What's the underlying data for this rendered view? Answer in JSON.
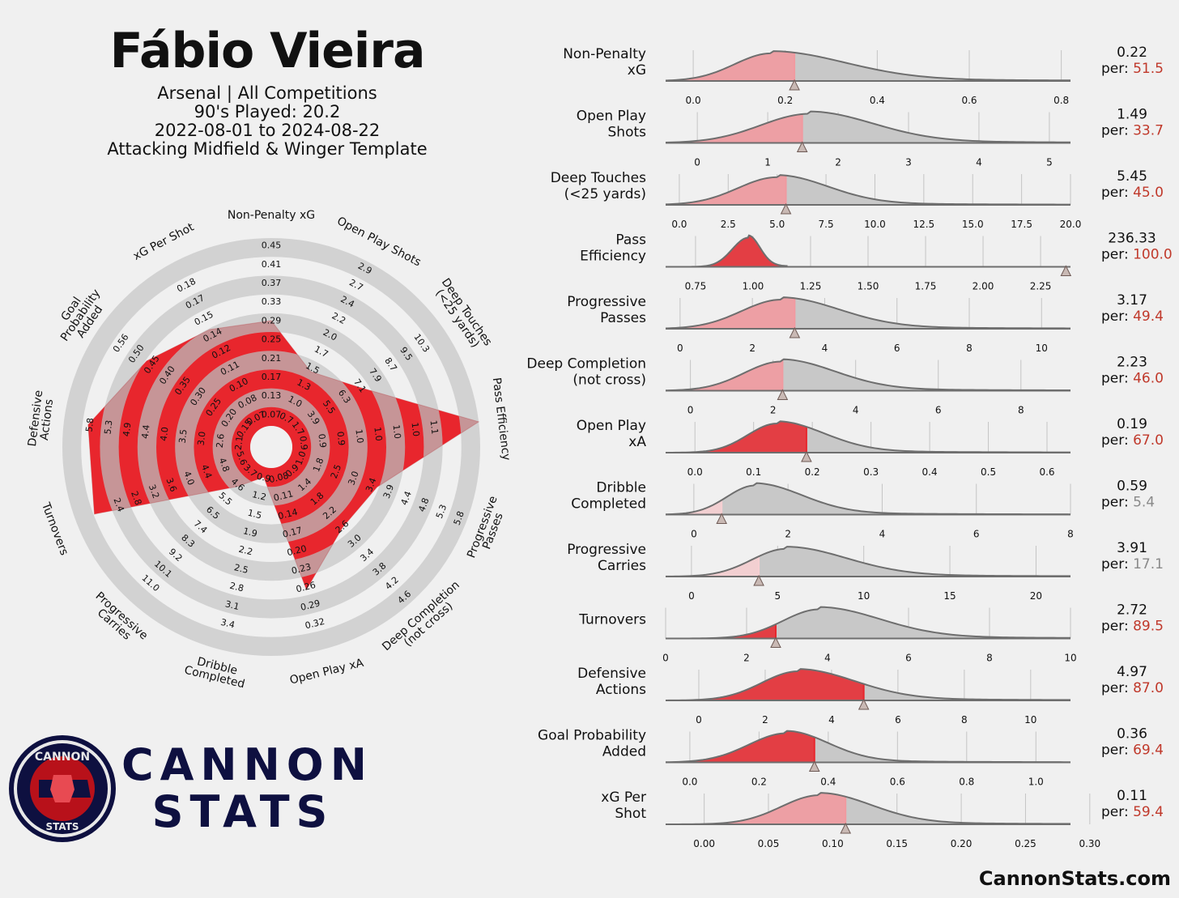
{
  "header": {
    "player": "Fábio Vieira",
    "line1": "Arsenal | All Competitions",
    "line2": "90's Played: 20.2",
    "line3": "2022-08-01 to 2024-08-22",
    "line4": "Attacking Midfield & Winger Template"
  },
  "brand": {
    "line1": "CANNON",
    "line2": "STATS",
    "badge_top": "CANNON",
    "badge_bottom": "STATS",
    "site": "CannonStats.com"
  },
  "colors": {
    "red": "#e8262d",
    "light_red": "#f19aa0",
    "pale_red": "#f6cfd2",
    "gray": "#c8c8c8",
    "ring": "#d2d2d2",
    "navy": "#0e1040",
    "pct_high": "#c0392b",
    "pct_low": "#8a8a8a"
  },
  "chart_data": [
    {
      "type": "radar",
      "axes": [
        {
          "label": [
            "Non-Penalty xG"
          ],
          "ticks": [
            "0.07",
            "0.13",
            "0.17",
            "0.21",
            "0.25",
            "0.29",
            "0.33",
            "0.37",
            "0.41",
            "0.45"
          ],
          "value_fraction": 0.56
        },
        {
          "label": [
            "Open Play Shots"
          ],
          "ticks": [
            "0.7",
            "1.0",
            "1.3",
            "1.5",
            "1.7",
            "2.0",
            "2.2",
            "2.4",
            "2.7",
            "2.9"
          ],
          "value_fraction": 0.34
        },
        {
          "label": [
            "Deep Touches",
            "(<25 yards)"
          ],
          "ticks": [
            "1.7",
            "3.9",
            "5.5",
            "6.3",
            "7.1",
            "7.9",
            "8.7",
            "9.5",
            "10.3",
            ""
          ],
          "value_fraction": 0.45
        },
        {
          "label": [
            "Pass Efficiency"
          ],
          "ticks": [
            "0.9",
            "0.9",
            "0.9",
            "1.0",
            "1.0",
            "1.0",
            "1.0",
            "1.1",
            "",
            ""
          ],
          "value_fraction": 1.0
        },
        {
          "label": [
            "Progressive",
            "Passes"
          ],
          "ticks": [
            "1.0",
            "1.8",
            "2.5",
            "3.0",
            "3.4",
            "3.9",
            "4.4",
            "4.8",
            "5.3",
            "5.8"
          ],
          "value_fraction": 0.49
        },
        {
          "label": [
            "Deep Completion",
            "(not cross)"
          ],
          "ticks": [
            "0.9",
            "1.4",
            "1.8",
            "2.2",
            "2.6",
            "3.0",
            "3.4",
            "3.8",
            "4.2",
            "4.6"
          ],
          "value_fraction": 0.46
        },
        {
          "label": [
            "Open Play xA"
          ],
          "ticks": [
            "0.08",
            "0.11",
            "0.14",
            "0.17",
            "0.20",
            "0.23",
            "0.26",
            "0.29",
            "0.32",
            ""
          ],
          "value_fraction": 0.67
        },
        {
          "label": [
            "Dribble",
            "Completed"
          ],
          "ticks": [
            "0.9",
            "1.2",
            "1.5",
            "1.9",
            "2.2",
            "2.5",
            "2.8",
            "3.1",
            "3.4",
            ""
          ],
          "value_fraction": 0.054
        },
        {
          "label": [
            "Progressive",
            "Carries"
          ],
          "ticks": [
            "3.7",
            "4.6",
            "5.5",
            "6.5",
            "7.4",
            "8.3",
            "9.2",
            "10.1",
            "11.0",
            ""
          ],
          "value_fraction": 0.171
        },
        {
          "label": [
            "Turnovers"
          ],
          "ticks": [
            "5.6",
            "4.8",
            "4.4",
            "4.0",
            "3.6",
            "3.2",
            "2.8",
            "2.4",
            "",
            ""
          ],
          "value_fraction": 0.895
        },
        {
          "label": [
            "Defensive",
            "Actions"
          ],
          "ticks": [
            "2.1",
            "2.6",
            "3.0",
            "3.5",
            "4.0",
            "4.4",
            "4.9",
            "5.3",
            "5.8",
            ""
          ],
          "value_fraction": 0.87
        },
        {
          "label": [
            "Goal",
            "Probability",
            "Added"
          ],
          "ticks": [
            "0.15",
            "0.20",
            "0.25",
            "0.30",
            "0.35",
            "0.40",
            "0.45",
            "0.50",
            "0.56",
            ""
          ],
          "value_fraction": 0.694
        },
        {
          "label": [
            "xG Per Shot"
          ],
          "ticks": [
            "0.07",
            "0.08",
            "0.10",
            "0.11",
            "0.12",
            "0.14",
            "0.15",
            "0.17",
            "0.18",
            ""
          ],
          "value_fraction": 0.594
        }
      ]
    },
    {
      "type": "area",
      "metrics": [
        {
          "label": [
            "Non-Penalty",
            "xG"
          ],
          "value": "0.22",
          "pct": "51.5",
          "player_value": 0.22,
          "range": [
            -0.06,
            0.82
          ],
          "ticks": [
            0.0,
            0.2,
            0.4,
            0.6,
            0.8
          ],
          "tick_labels": [
            "0.0",
            "0.2",
            "0.4",
            "0.6",
            "0.8"
          ],
          "peak": 0.17,
          "spread_left": 0.08,
          "spread_right": 0.16,
          "height": 0.95
        },
        {
          "label": [
            "Open Play",
            "Shots"
          ],
          "value": "1.49",
          "pct": "33.7",
          "player_value": 1.49,
          "range": [
            -0.45,
            5.3
          ],
          "ticks": [
            0,
            1,
            2,
            3,
            4,
            5
          ],
          "tick_labels": [
            "0",
            "1",
            "2",
            "3",
            "4",
            "5"
          ],
          "peak": 1.6,
          "spread_left": 0.7,
          "spread_right": 0.9,
          "height": 1.0
        },
        {
          "label": [
            "Deep Touches",
            "(<25 yards)"
          ],
          "value": "5.45",
          "pct": "45.0",
          "player_value": 5.45,
          "range": [
            -0.7,
            20.0
          ],
          "ticks": [
            0,
            2.5,
            5,
            7.5,
            10,
            12.5,
            15,
            17.5,
            20
          ],
          "tick_labels": [
            "0.0",
            "2.5",
            "5.0",
            "7.5",
            "10.0",
            "12.5",
            "15.0",
            "17.5",
            "20.0"
          ],
          "peak": 5.0,
          "spread_left": 2.0,
          "spread_right": 2.6,
          "height": 0.95
        },
        {
          "label": [
            "Pass",
            "Efficiency"
          ],
          "value": "236.33",
          "pct": "100.0",
          "player_value": 2.36,
          "range": [
            0.62,
            2.38
          ],
          "ticks": [
            0.75,
            1.0,
            1.25,
            1.5,
            1.75,
            2.0,
            2.25
          ],
          "tick_labels": [
            "0.75",
            "1.00",
            "1.25",
            "1.50",
            "1.75",
            "2.00",
            "2.25"
          ],
          "peak": 0.98,
          "spread_left": 0.07,
          "spread_right": 0.05,
          "height": 1.0
        },
        {
          "label": [
            "Progressive",
            "Passes"
          ],
          "value": "3.17",
          "pct": "49.4",
          "player_value": 3.17,
          "range": [
            -0.4,
            10.8
          ],
          "ticks": [
            0,
            2,
            4,
            6,
            8,
            10
          ],
          "tick_labels": [
            "0",
            "2",
            "4",
            "6",
            "8",
            "10"
          ],
          "peak": 2.8,
          "spread_left": 1.1,
          "spread_right": 1.6,
          "height": 1.0
        },
        {
          "label": [
            "Deep Completion",
            "(not cross)"
          ],
          "value": "2.23",
          "pct": "46.0",
          "player_value": 2.23,
          "range": [
            -0.6,
            9.2
          ],
          "ticks": [
            0,
            2,
            4,
            6,
            8
          ],
          "tick_labels": [
            "0",
            "2",
            "4",
            "6",
            "8"
          ],
          "peak": 2.2,
          "spread_left": 0.9,
          "spread_right": 1.3,
          "height": 1.0
        },
        {
          "label": [
            "Open Play",
            "xA"
          ],
          "value": "0.19",
          "pct": "67.0",
          "player_value": 0.19,
          "range": [
            -0.05,
            0.64
          ],
          "ticks": [
            0.0,
            0.1,
            0.2,
            0.3,
            0.4,
            0.5,
            0.6
          ],
          "tick_labels": [
            "0.0",
            "0.1",
            "0.2",
            "0.3",
            "0.4",
            "0.5",
            "0.6"
          ],
          "peak": 0.14,
          "spread_left": 0.05,
          "spread_right": 0.08,
          "height": 1.0
        },
        {
          "label": [
            "Dribble",
            "Completed"
          ],
          "value": "0.59",
          "pct": "5.4",
          "player_value": 0.59,
          "range": [
            -0.6,
            8.0
          ],
          "ticks": [
            0,
            2,
            4,
            6,
            8
          ],
          "tick_labels": [
            "0",
            "2",
            "4",
            "6",
            "8"
          ],
          "peak": 1.3,
          "spread_left": 0.6,
          "spread_right": 1.0,
          "height": 1.0
        },
        {
          "label": [
            "Progressive",
            "Carries"
          ],
          "value": "3.91",
          "pct": "17.1",
          "player_value": 3.91,
          "range": [
            -1.5,
            22.0
          ],
          "ticks": [
            0,
            5,
            10,
            15,
            20
          ],
          "tick_labels": [
            "0",
            "5",
            "10",
            "15",
            "20"
          ],
          "peak": 5.5,
          "spread_left": 2.0,
          "spread_right": 3.5,
          "height": 0.95
        },
        {
          "label": [
            "Turnovers"
          ],
          "value": "2.72",
          "pct": "89.5",
          "player_value": 2.72,
          "range": [
            0.0,
            10.0
          ],
          "ticks": [
            0,
            2,
            4,
            6,
            8,
            10
          ],
          "tick_labels": [
            "0",
            "2",
            "4",
            "6",
            "8",
            "10"
          ],
          "peak": 3.8,
          "spread_left": 0.9,
          "spread_right": 1.5,
          "height": 1.0
        },
        {
          "label": [
            "Defensive",
            "Actions"
          ],
          "value": "4.97",
          "pct": "87.0",
          "player_value": 4.97,
          "range": [
            -1.0,
            11.2
          ],
          "ticks": [
            0,
            2,
            4,
            6,
            8,
            10
          ],
          "tick_labels": [
            "0",
            "2",
            "4",
            "6",
            "8",
            "10"
          ],
          "peak": 3.0,
          "spread_left": 1.1,
          "spread_right": 1.7,
          "height": 1.0
        },
        {
          "label": [
            "Goal Probability",
            "Added"
          ],
          "value": "0.36",
          "pct": "69.4",
          "player_value": 0.36,
          "range": [
            -0.07,
            1.1
          ],
          "ticks": [
            0.0,
            0.2,
            0.4,
            0.6,
            0.8,
            1.0
          ],
          "tick_labels": [
            "0.0",
            "0.2",
            "0.4",
            "0.6",
            "0.8",
            "1.0"
          ],
          "peak": 0.28,
          "spread_left": 0.11,
          "spread_right": 0.12,
          "height": 1.0
        },
        {
          "label": [
            "xG Per",
            "Shot"
          ],
          "value": "0.11",
          "pct": "59.4",
          "player_value": 0.11,
          "range": [
            -0.03,
            0.285
          ],
          "ticks": [
            0.0,
            0.05,
            0.1,
            0.15,
            0.2,
            0.25,
            0.3
          ],
          "tick_labels": [
            "0.00",
            "0.05",
            "0.10",
            "0.15",
            "0.20",
            "0.25",
            "0.30"
          ],
          "peak": 0.09,
          "spread_left": 0.03,
          "spread_right": 0.04,
          "height": 1.0
        }
      ]
    }
  ]
}
